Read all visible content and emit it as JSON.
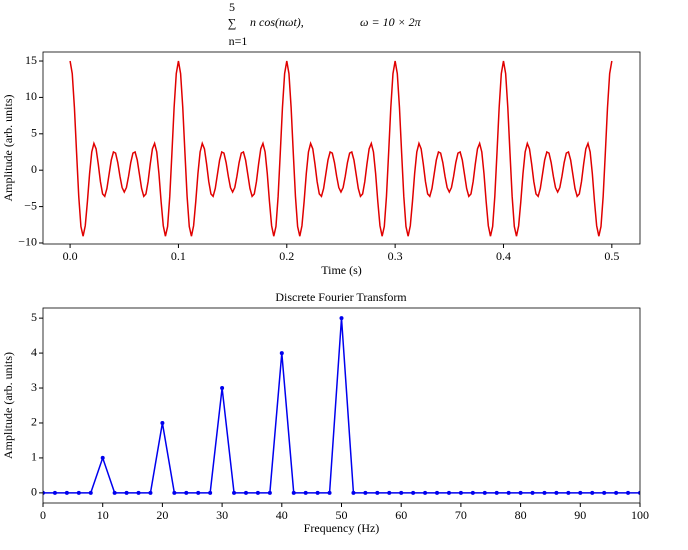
{
  "chart_data": [
    {
      "type": "line",
      "title": {
        "sum_upper": "5",
        "sum_symbol": "∑",
        "sum_lower": "n=1",
        "expression": "n cos(nωt),",
        "omega": "ω = 10 × 2π"
      },
      "x_label": "Time (s)",
      "y_label": "Amplitude (arb. units)",
      "xlim": [
        -0.025,
        0.526
      ],
      "ylim": [
        -10.14,
        16.24
      ],
      "xticks": [
        {
          "value": 0,
          "label": "0.0"
        },
        0.1,
        0.2,
        0.3,
        0.4,
        0.5
      ],
      "yticks": [
        {
          "value": -10,
          "label": "−10"
        },
        {
          "value": -5,
          "label": "−5"
        },
        0,
        5,
        10,
        15
      ],
      "series": [
        {
          "color": "#e00000",
          "x": [
            0,
            0.002,
            0.004,
            0.006,
            0.008,
            0.01,
            0.012,
            0.014,
            0.016,
            0.018,
            0.02,
            0.022,
            0.024,
            0.026,
            0.028,
            0.03,
            0.032,
            0.034,
            0.036,
            0.038,
            0.04,
            0.042,
            0.044,
            0.046,
            0.048,
            0.05,
            0.052,
            0.054,
            0.056,
            0.058,
            0.06,
            0.062,
            0.064,
            0.066,
            0.068,
            0.07,
            0.072,
            0.074,
            0.076,
            0.078,
            0.08,
            0.082,
            0.084,
            0.086,
            0.088,
            0.09,
            0.092,
            0.094,
            0.096,
            0.098,
            0.1,
            0.102,
            0.104,
            0.106,
            0.108,
            0.11,
            0.112,
            0.114,
            0.116,
            0.118,
            0.12,
            0.122,
            0.124,
            0.126,
            0.128,
            0.13,
            0.132,
            0.134,
            0.136,
            0.138,
            0.14,
            0.142,
            0.144,
            0.146,
            0.148,
            0.15,
            0.152,
            0.154,
            0.156,
            0.158,
            0.16,
            0.162,
            0.164,
            0.166,
            0.168,
            0.17,
            0.172,
            0.174,
            0.176,
            0.178,
            0.18,
            0.182,
            0.184,
            0.186,
            0.188,
            0.19,
            0.192,
            0.194,
            0.196,
            0.198,
            0.2,
            0.202,
            0.204,
            0.206,
            0.208,
            0.21,
            0.212,
            0.214,
            0.216,
            0.218,
            0.22,
            0.222,
            0.224,
            0.226,
            0.228,
            0.23,
            0.232,
            0.234,
            0.236,
            0.238,
            0.24,
            0.242,
            0.244,
            0.246,
            0.248,
            0.25,
            0.252,
            0.254,
            0.256,
            0.258,
            0.26,
            0.262,
            0.264,
            0.266,
            0.268,
            0.27,
            0.272,
            0.274,
            0.276,
            0.278,
            0.28,
            0.282,
            0.284,
            0.286,
            0.288,
            0.29,
            0.292,
            0.294,
            0.296,
            0.298,
            0.3,
            0.302,
            0.304,
            0.306,
            0.308,
            0.31,
            0.312,
            0.314,
            0.316,
            0.318,
            0.32,
            0.322,
            0.324,
            0.326,
            0.328,
            0.33,
            0.332,
            0.334,
            0.336,
            0.338,
            0.34,
            0.342,
            0.344,
            0.346,
            0.348,
            0.35,
            0.352,
            0.354,
            0.356,
            0.358,
            0.36,
            0.362,
            0.364,
            0.366,
            0.368,
            0.37,
            0.372,
            0.374,
            0.376,
            0.378,
            0.38,
            0.382,
            0.384,
            0.386,
            0.388,
            0.39,
            0.392,
            0.394,
            0.396,
            0.398,
            0.4,
            0.402,
            0.404,
            0.406,
            0.408,
            0.41,
            0.412,
            0.414,
            0.416,
            0.418,
            0.42,
            0.422,
            0.424,
            0.426,
            0.428,
            0.43,
            0.432,
            0.434,
            0.436,
            0.438,
            0.44,
            0.442,
            0.444,
            0.446,
            0.448,
            0.45,
            0.452,
            0.454,
            0.456,
            0.458,
            0.46,
            0.462,
            0.464,
            0.466,
            0.468,
            0.47,
            0.472,
            0.474,
            0.476,
            0.478,
            0.48,
            0.482,
            0.484,
            0.486,
            0.488,
            0.49,
            0.492,
            0.494,
            0.496,
            0.498,
            0.5
          ],
          "values": [
            15,
            13.27,
            8.6,
            2.37,
            -3.61,
            -7.74,
            -9.07,
            -7.63,
            -4.3,
            -0.46,
            2.5,
            3.68,
            2.94,
            0.85,
            -1.57,
            -3.26,
            -3.59,
            -2.51,
            -0.56,
            1.39,
            2.5,
            2.35,
            1.05,
            -0.81,
            -2.38,
            -3,
            -2.38,
            -0.81,
            1.05,
            2.35,
            2.5,
            1.39,
            -0.56,
            -2.51,
            -3.59,
            -3.26,
            -1.57,
            0.85,
            2.94,
            3.68,
            2.5,
            -0.46,
            -4.3,
            -7.63,
            -9.07,
            -7.74,
            -3.61,
            2.37,
            8.6,
            13.27,
            15,
            13.27,
            8.6,
            2.37,
            -3.61,
            -7.74,
            -9.07,
            -7.63,
            -4.3,
            -0.46,
            2.5,
            3.68,
            2.94,
            0.85,
            -1.57,
            -3.26,
            -3.59,
            -2.51,
            -0.56,
            1.39,
            2.5,
            2.35,
            1.05,
            -0.81,
            -2.38,
            -3,
            -2.38,
            -0.81,
            1.05,
            2.35,
            2.5,
            1.39,
            -0.56,
            -2.51,
            -3.59,
            -3.26,
            -1.57,
            0.85,
            2.94,
            3.68,
            2.5,
            -0.46,
            -4.3,
            -7.63,
            -9.07,
            -7.74,
            -3.61,
            2.37,
            8.6,
            13.27,
            15,
            13.27,
            8.6,
            2.37,
            -3.61,
            -7.74,
            -9.07,
            -7.63,
            -4.3,
            -0.46,
            2.5,
            3.68,
            2.94,
            0.85,
            -1.57,
            -3.26,
            -3.59,
            -2.51,
            -0.56,
            1.39,
            2.5,
            2.35,
            1.05,
            -0.81,
            -2.38,
            -3,
            -2.38,
            -0.81,
            1.05,
            2.35,
            2.5,
            1.39,
            -0.56,
            -2.51,
            -3.59,
            -3.26,
            -1.57,
            0.85,
            2.94,
            3.68,
            2.5,
            -0.46,
            -4.3,
            -7.63,
            -9.07,
            -7.74,
            -3.61,
            2.37,
            8.6,
            13.27,
            15,
            13.27,
            8.6,
            2.37,
            -3.61,
            -7.74,
            -9.07,
            -7.63,
            -4.3,
            -0.46,
            2.5,
            3.68,
            2.94,
            0.85,
            -1.57,
            -3.26,
            -3.59,
            -2.51,
            -0.56,
            1.39,
            2.5,
            2.35,
            1.05,
            -0.81,
            -2.38,
            -3,
            -2.38,
            -0.81,
            1.05,
            2.35,
            2.5,
            1.39,
            -0.56,
            -2.51,
            -3.59,
            -3.26,
            -1.57,
            0.85,
            2.94,
            3.68,
            2.5,
            -0.46,
            -4.3,
            -7.63,
            -9.07,
            -7.74,
            -3.61,
            2.37,
            8.6,
            13.27,
            15,
            13.27,
            8.6,
            2.37,
            -3.61,
            -7.74,
            -9.07,
            -7.63,
            -4.3,
            -0.46,
            2.5,
            3.68,
            2.94,
            0.85,
            -1.57,
            -3.26,
            -3.59,
            -2.51,
            -0.56,
            1.39,
            2.5,
            2.35,
            1.05,
            -0.81,
            -2.38,
            -3,
            -2.38,
            -0.81,
            1.05,
            2.35,
            2.5,
            1.39,
            -0.56,
            -2.51,
            -3.59,
            -3.26,
            -1.57,
            0.85,
            2.94,
            3.68,
            2.5,
            -0.46,
            -4.3,
            -7.63,
            -9.07,
            -7.74,
            -3.61,
            2.37,
            8.6,
            13.27,
            15
          ]
        }
      ]
    },
    {
      "type": "line",
      "marker": "o",
      "title": "Discrete Fourier Transform",
      "x_label": "Frequency (Hz)",
      "y_label": "Amplitude (arb. units)",
      "xlim": [
        0,
        100
      ],
      "ylim": [
        -0.29,
        5.29
      ],
      "xticks": [
        0,
        10,
        20,
        30,
        40,
        50,
        60,
        70,
        80,
        90,
        100
      ],
      "yticks": [
        0,
        1,
        2,
        3,
        4,
        5
      ],
      "series": [
        {
          "color": "#0000ee",
          "x": [
            0,
            2,
            4,
            6,
            8,
            10,
            12,
            14,
            16,
            18,
            20,
            22,
            24,
            26,
            28,
            30,
            32,
            34,
            36,
            38,
            40,
            42,
            44,
            46,
            48,
            50,
            52,
            54,
            56,
            58,
            60,
            62,
            64,
            66,
            68,
            70,
            72,
            74,
            76,
            78,
            80,
            82,
            84,
            86,
            88,
            90,
            92,
            94,
            96,
            98,
            100
          ],
          "values": [
            0,
            0,
            0,
            0,
            0,
            1,
            0,
            0,
            0,
            0,
            2,
            0,
            0,
            0,
            0,
            3,
            0,
            0,
            0,
            0,
            4,
            0,
            0,
            0,
            0,
            5,
            0,
            0,
            0,
            0,
            0,
            0,
            0,
            0,
            0,
            0,
            0,
            0,
            0,
            0,
            0,
            0,
            0,
            0,
            0,
            0,
            0,
            0,
            0,
            0,
            0
          ]
        }
      ]
    }
  ]
}
